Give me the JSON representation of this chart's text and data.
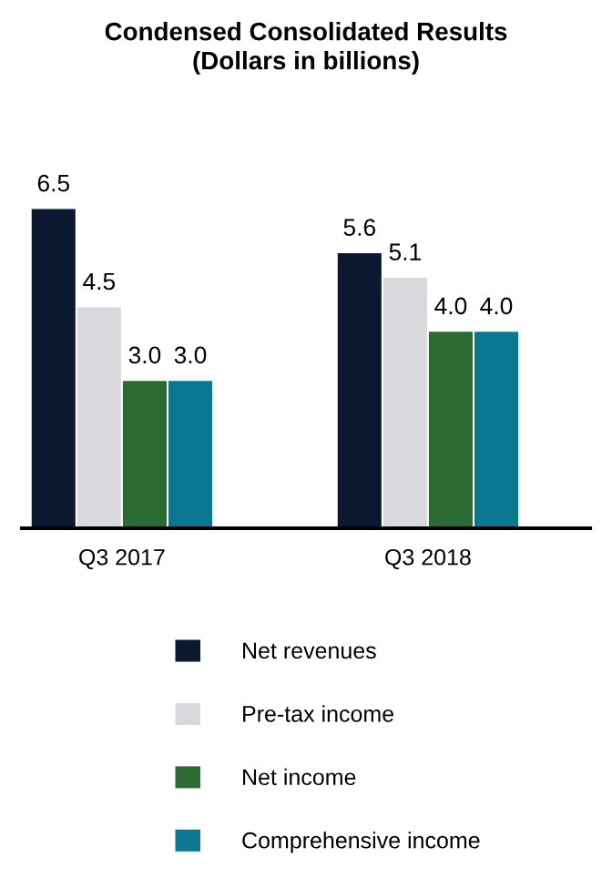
{
  "chart_data": {
    "type": "bar",
    "title": "Condensed Consolidated Results\n(Dollars in billions)",
    "categories": [
      "Q3 2017",
      "Q3 2018"
    ],
    "series": [
      {
        "name": "Net revenues",
        "color": "#0c1830",
        "values": [
          6.5,
          5.6
        ],
        "value_labels": [
          "6.5",
          "5.6"
        ]
      },
      {
        "name": "Pre-tax income",
        "color": "#d8d8dd",
        "values": [
          4.5,
          5.1
        ],
        "value_labels": [
          "4.5",
          "5.1"
        ]
      },
      {
        "name": "Net income",
        "color": "#2b6b31",
        "values": [
          3.0,
          4.0
        ],
        "value_labels": [
          "3.0",
          "4.0"
        ]
      },
      {
        "name": "Comprehensive income",
        "color": "#0a7891",
        "values": [
          3.0,
          4.0
        ],
        "value_labels": [
          "3.0",
          "4.0"
        ]
      }
    ],
    "legend": "bottom",
    "grid": false
  }
}
